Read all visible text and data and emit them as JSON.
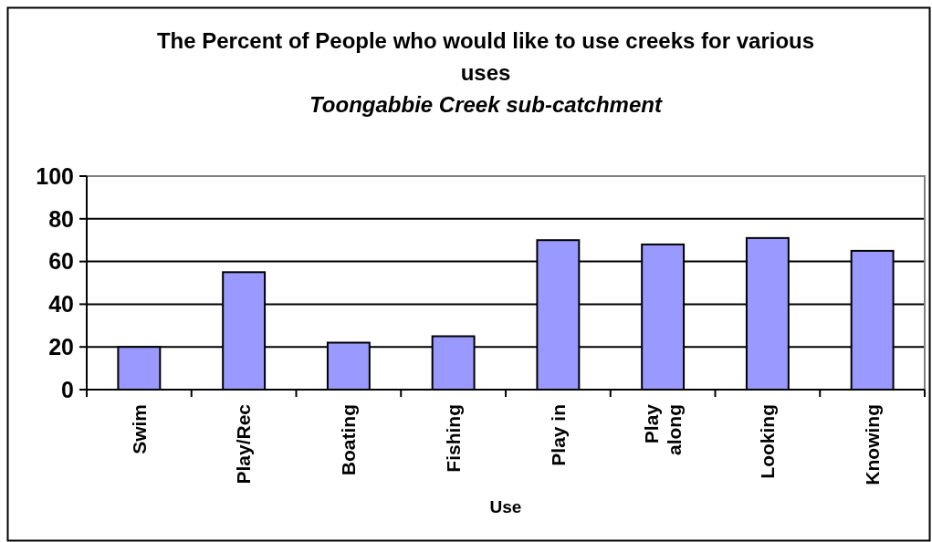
{
  "chart_data": {
    "type": "bar",
    "title": "The Percent of People who would like to use creeks for various uses",
    "subtitle": "Toongabbie Creek sub-catchment",
    "xlabel": "Use",
    "categories": [
      "Swim",
      "Play/Rec",
      "Boating",
      "Fishing",
      "Play in",
      "Play along",
      "Looking",
      "Knowing"
    ],
    "values": [
      20,
      55,
      22,
      25,
      70,
      68,
      71,
      65
    ],
    "color": "#9999ff",
    "ylim": [
      0,
      100
    ],
    "yticks": [
      0,
      20,
      40,
      60,
      80,
      100
    ],
    "grid": "y"
  }
}
